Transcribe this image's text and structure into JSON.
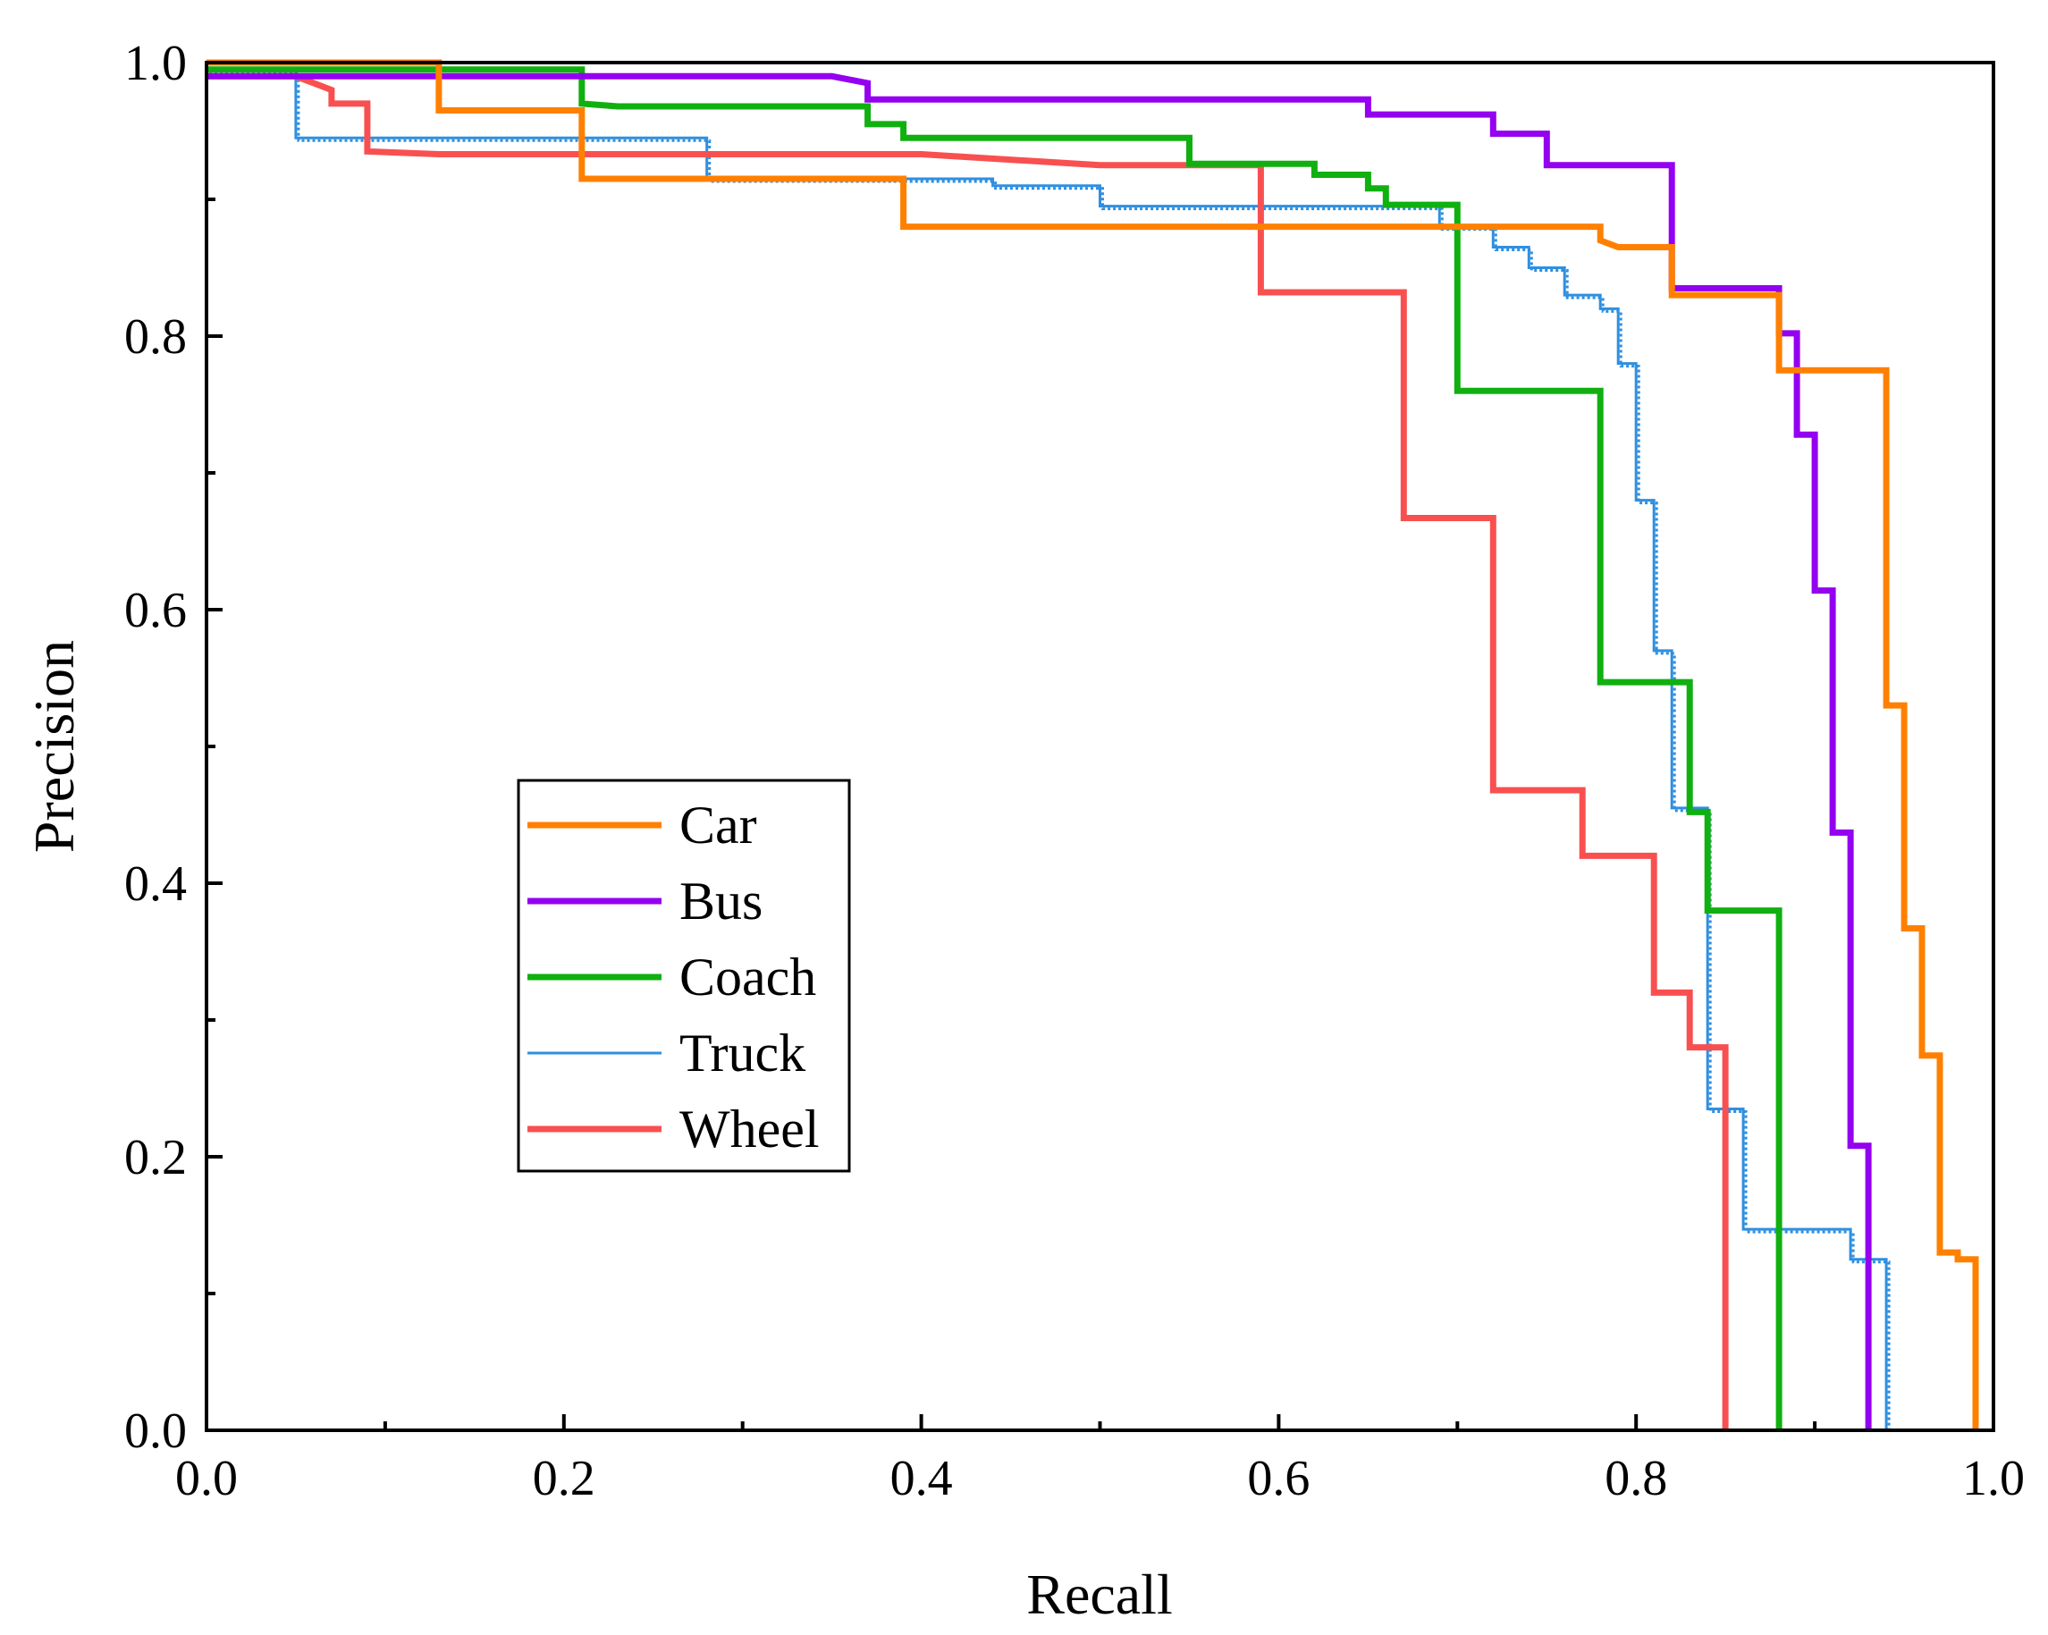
{
  "chart_data": {
    "type": "line",
    "title": "",
    "xlabel": "Recall",
    "ylabel": "Precision",
    "xlim": [
      0.0,
      1.0
    ],
    "ylim": [
      0.0,
      1.0
    ],
    "xticks": [
      "0.0",
      "0.2",
      "0.4",
      "0.6",
      "0.8",
      "1.0"
    ],
    "yticks": [
      "0.0",
      "0.2",
      "0.4",
      "0.6",
      "0.8",
      "1.0"
    ],
    "xtick_values": [
      0.0,
      0.2,
      0.4,
      0.6,
      0.8,
      1.0
    ],
    "ytick_values": [
      0.0,
      0.2,
      0.4,
      0.6,
      0.8,
      1.0
    ],
    "minor_ticks_x": [
      0.1,
      0.3,
      0.5,
      0.7,
      0.9
    ],
    "minor_ticks_y": [
      0.1,
      0.3,
      0.5,
      0.7,
      0.9
    ],
    "grid": false,
    "legend_position": "center-left",
    "series": [
      {
        "name": "Car",
        "color": "#ff8000",
        "style": "thick",
        "x": [
          0.0,
          0.13,
          0.13,
          0.21,
          0.21,
          0.39,
          0.39,
          0.78,
          0.78,
          0.79,
          0.82,
          0.82,
          0.88,
          0.88,
          0.94,
          0.94,
          0.95,
          0.95,
          0.96,
          0.96,
          0.97,
          0.97,
          0.98,
          0.98,
          0.99,
          0.99
        ],
        "y": [
          1.0,
          1.0,
          0.965,
          0.965,
          0.915,
          0.915,
          0.88,
          0.88,
          0.87,
          0.865,
          0.865,
          0.83,
          0.83,
          0.775,
          0.775,
          0.53,
          0.53,
          0.367,
          0.367,
          0.274,
          0.274,
          0.13,
          0.13,
          0.125,
          0.125,
          0.0
        ]
      },
      {
        "name": "Bus",
        "color": "#9400f0",
        "style": "thick",
        "x": [
          0.0,
          0.21,
          0.35,
          0.37,
          0.37,
          0.65,
          0.65,
          0.72,
          0.72,
          0.75,
          0.75,
          0.82,
          0.82,
          0.88,
          0.88,
          0.89,
          0.89,
          0.9,
          0.9,
          0.91,
          0.91,
          0.92,
          0.92,
          0.93,
          0.93
        ],
        "y": [
          0.99,
          0.99,
          0.99,
          0.985,
          0.973,
          0.973,
          0.962,
          0.962,
          0.948,
          0.948,
          0.925,
          0.925,
          0.835,
          0.835,
          0.802,
          0.802,
          0.728,
          0.728,
          0.614,
          0.614,
          0.437,
          0.437,
          0.208,
          0.208,
          0.0
        ]
      },
      {
        "name": "Coach",
        "color": "#10b010",
        "style": "thick",
        "x": [
          0.0,
          0.21,
          0.21,
          0.23,
          0.37,
          0.37,
          0.39,
          0.39,
          0.55,
          0.55,
          0.62,
          0.62,
          0.65,
          0.65,
          0.66,
          0.66,
          0.7,
          0.7,
          0.78,
          0.78,
          0.83,
          0.83,
          0.84,
          0.84,
          0.88,
          0.88
        ],
        "y": [
          0.995,
          0.995,
          0.97,
          0.968,
          0.968,
          0.955,
          0.955,
          0.945,
          0.945,
          0.926,
          0.926,
          0.918,
          0.918,
          0.908,
          0.908,
          0.896,
          0.896,
          0.76,
          0.76,
          0.547,
          0.547,
          0.452,
          0.452,
          0.38,
          0.38,
          0.0
        ]
      },
      {
        "name": "Truck",
        "color": "#2f8fe0",
        "style": "thin",
        "x": [
          0.0,
          0.05,
          0.05,
          0.28,
          0.28,
          0.44,
          0.44,
          0.5,
          0.5,
          0.69,
          0.69,
          0.72,
          0.72,
          0.74,
          0.74,
          0.76,
          0.76,
          0.78,
          0.78,
          0.79,
          0.79,
          0.8,
          0.8,
          0.81,
          0.81,
          0.82,
          0.82,
          0.84,
          0.84,
          0.86,
          0.86,
          0.92,
          0.92,
          0.94,
          0.94
        ],
        "y": [
          0.995,
          0.995,
          0.945,
          0.945,
          0.915,
          0.915,
          0.91,
          0.91,
          0.895,
          0.895,
          0.88,
          0.88,
          0.865,
          0.865,
          0.85,
          0.85,
          0.83,
          0.83,
          0.82,
          0.82,
          0.78,
          0.78,
          0.68,
          0.68,
          0.57,
          0.57,
          0.455,
          0.455,
          0.235,
          0.235,
          0.147,
          0.147,
          0.125,
          0.125,
          0.0
        ]
      },
      {
        "name": "Wheel",
        "color": "#f85050",
        "style": "thick",
        "x": [
          0.0,
          0.05,
          0.07,
          0.07,
          0.09,
          0.09,
          0.13,
          0.37,
          0.4,
          0.5,
          0.5,
          0.59,
          0.59,
          0.67,
          0.67,
          0.72,
          0.72,
          0.77,
          0.77,
          0.81,
          0.81,
          0.83,
          0.83,
          0.85,
          0.85
        ],
        "y": [
          0.99,
          0.99,
          0.98,
          0.97,
          0.97,
          0.935,
          0.933,
          0.933,
          0.933,
          0.925,
          0.925,
          0.925,
          0.832,
          0.832,
          0.667,
          0.667,
          0.468,
          0.468,
          0.42,
          0.42,
          0.32,
          0.32,
          0.28,
          0.28,
          0.0
        ]
      }
    ]
  }
}
